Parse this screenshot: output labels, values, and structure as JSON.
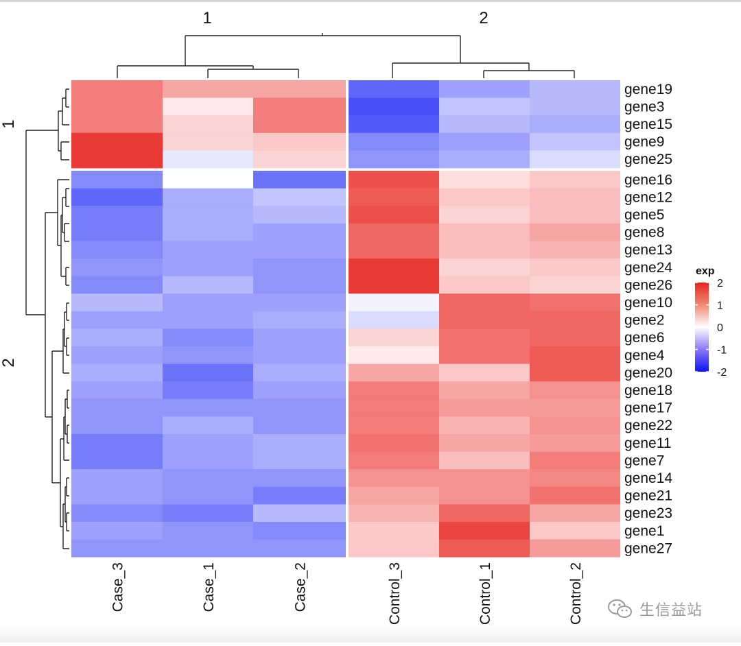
{
  "chart_data": {
    "type": "heatmap",
    "title": "",
    "legend": {
      "title": "exp",
      "ticks": [
        2,
        1,
        0,
        -1,
        -2
      ],
      "range": [
        -2,
        2
      ],
      "colors": {
        "low": "#0000ff",
        "mid": "#ffffff",
        "high": "#ff0000"
      },
      "placement": "right"
    },
    "column_split_labels": [
      "1",
      "2"
    ],
    "row_split_labels": [
      "1",
      "2"
    ],
    "columns": [
      "Case_3",
      "Case_1",
      "Case_2",
      "Control_3",
      "Control_1",
      "Control_2"
    ],
    "column_groups": [
      [
        0,
        1,
        2
      ],
      [
        3,
        4,
        5
      ]
    ],
    "rows": [
      "gene19",
      "gene3",
      "gene15",
      "gene9",
      "gene25",
      "gene16",
      "gene12",
      "gene5",
      "gene8",
      "gene13",
      "gene24",
      "gene26",
      "gene10",
      "gene2",
      "gene6",
      "gene4",
      "gene20",
      "gene18",
      "gene17",
      "gene22",
      "gene11",
      "gene7",
      "gene14",
      "gene21",
      "gene23",
      "gene1",
      "gene27"
    ],
    "row_groups": [
      [
        0,
        1,
        2,
        3,
        4
      ],
      [
        5,
        6,
        7,
        8,
        9,
        10,
        11,
        12,
        13,
        14,
        15,
        16,
        17,
        18,
        19,
        20,
        21,
        22,
        23,
        24,
        25,
        26
      ]
    ],
    "values": [
      [
        1.2,
        0.8,
        0.8,
        -1.3,
        -0.8,
        -0.6
      ],
      [
        1.2,
        0.2,
        1.2,
        -1.5,
        -0.5,
        -0.6
      ],
      [
        1.2,
        0.4,
        1.2,
        -1.4,
        -0.6,
        -0.7
      ],
      [
        1.8,
        0.4,
        0.5,
        -1.0,
        -0.8,
        -0.5
      ],
      [
        1.8,
        -0.2,
        0.4,
        -0.9,
        -0.7,
        -0.3
      ],
      [
        -1.0,
        0.0,
        -1.2,
        1.6,
        0.3,
        0.5
      ],
      [
        -1.3,
        -0.7,
        -0.5,
        1.5,
        0.5,
        0.6
      ],
      [
        -1.1,
        -0.7,
        -0.6,
        1.6,
        0.4,
        0.6
      ],
      [
        -1.1,
        -0.7,
        -0.8,
        1.4,
        0.6,
        0.8
      ],
      [
        -1.0,
        -0.8,
        -0.8,
        1.4,
        0.6,
        0.7
      ],
      [
        -0.9,
        -0.8,
        -0.9,
        1.8,
        0.4,
        0.5
      ],
      [
        -1.0,
        -0.6,
        -0.9,
        1.8,
        0.5,
        0.4
      ],
      [
        -0.6,
        -0.8,
        -0.8,
        -0.1,
        1.4,
        1.3
      ],
      [
        -0.8,
        -0.8,
        -0.7,
        -0.3,
        1.4,
        1.4
      ],
      [
        -0.7,
        -1.0,
        -0.8,
        0.4,
        1.3,
        1.4
      ],
      [
        -0.8,
        -0.9,
        -0.8,
        0.2,
        1.3,
        1.5
      ],
      [
        -0.7,
        -1.2,
        -0.7,
        0.8,
        0.5,
        1.5
      ],
      [
        -0.8,
        -1.1,
        -0.8,
        1.2,
        0.8,
        1.0
      ],
      [
        -0.9,
        -0.9,
        -0.9,
        1.2,
        0.9,
        0.9
      ],
      [
        -0.9,
        -0.7,
        -0.9,
        1.2,
        0.7,
        1.0
      ],
      [
        -1.1,
        -0.8,
        -0.7,
        1.3,
        0.8,
        0.9
      ],
      [
        -1.1,
        -0.8,
        -0.7,
        1.2,
        0.6,
        1.2
      ],
      [
        -0.8,
        -0.9,
        -0.9,
        1.0,
        1.0,
        1.1
      ],
      [
        -0.8,
        -0.9,
        -1.1,
        0.8,
        1.0,
        1.3
      ],
      [
        -1.0,
        -1.1,
        -0.6,
        0.7,
        1.4,
        0.8
      ],
      [
        -0.8,
        -0.9,
        -1.0,
        0.5,
        1.7,
        0.5
      ],
      [
        -0.9,
        -0.9,
        -0.9,
        0.5,
        1.5,
        0.9
      ]
    ]
  },
  "watermark": {
    "icon": "wechat-icon",
    "text": "生信益站"
  }
}
